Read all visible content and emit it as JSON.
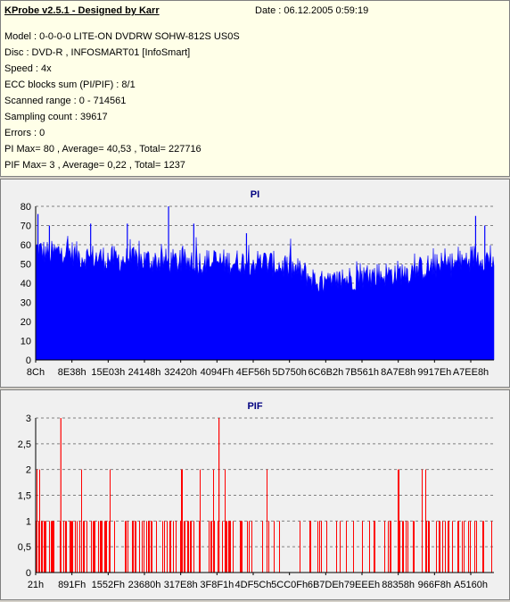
{
  "header": {
    "title": "KProbe v2.5.1 - Designed by Karr",
    "date": "Date : 06.12.2005 0:59:19",
    "lines": [
      "Model : 0-0-0-0 LITE-ON DVDRW SOHW-812S  US0S",
      "Disc : DVD-R , INFOSMART01 [InfoSmart]",
      "Speed : 4x",
      "ECC blocks sum (PI/PIF) : 8/1",
      "Scanned range : 0 - 714561",
      "Sampling count : 39617",
      "Errors : 0",
      "PI Max= 80 , Average= 40,53 , Total= 227716",
      "PIF Max= 3 , Average= 0,22 , Total= 1237"
    ]
  },
  "colors": {
    "pi": "#0000ff",
    "pif": "#ff0000",
    "plot_bg": "#f0f0f0",
    "grid": "#808080",
    "title": "#000080"
  },
  "chart_data": [
    {
      "type": "area",
      "title": "PI",
      "ylim": [
        0,
        80
      ],
      "yticks": [
        "0",
        "10",
        "20",
        "30",
        "40",
        "50",
        "60",
        "70",
        "80"
      ],
      "xticks": [
        "8Ch",
        "8E38h",
        "15E03h",
        "24148h",
        "32420h",
        "4094Fh",
        "4EF56h",
        "5D750h",
        "6C6B2h",
        "7B561h",
        "8A7E8h",
        "9917Eh",
        "A7EE8h"
      ],
      "profile": [
        [
          0,
          58
        ],
        [
          0.03,
          55
        ],
        [
          0.06,
          57
        ],
        [
          0.1,
          54
        ],
        [
          0.15,
          53
        ],
        [
          0.2,
          52
        ],
        [
          0.25,
          52
        ],
        [
          0.3,
          51
        ],
        [
          0.35,
          51
        ],
        [
          0.4,
          51
        ],
        [
          0.45,
          51
        ],
        [
          0.5,
          51
        ],
        [
          0.55,
          48
        ],
        [
          0.58,
          46
        ],
        [
          0.6,
          43
        ],
        [
          0.62,
          40
        ],
        [
          0.64,
          39
        ],
        [
          0.67,
          42
        ],
        [
          0.7,
          43
        ],
        [
          0.74,
          44
        ],
        [
          0.78,
          45
        ],
        [
          0.82,
          46
        ],
        [
          0.85,
          48
        ],
        [
          0.88,
          49
        ],
        [
          0.92,
          50
        ],
        [
          0.96,
          54
        ],
        [
          1.0,
          52
        ]
      ],
      "spikes": [
        [
          0.005,
          76
        ],
        [
          0.03,
          70
        ],
        [
          0.12,
          71
        ],
        [
          0.2,
          71
        ],
        [
          0.29,
          80
        ],
        [
          0.345,
          71
        ],
        [
          0.46,
          66
        ],
        [
          0.96,
          75
        ],
        [
          0.98,
          70
        ]
      ]
    },
    {
      "type": "bar",
      "title": "PIF",
      "ylim": [
        0,
        3
      ],
      "yticks": [
        "0",
        "0,5",
        "1",
        "1,5",
        "2",
        "2,5",
        "3"
      ],
      "xticks": [
        "21h",
        "891Fh",
        "1552Fh",
        "23680h",
        "317E8h",
        "3F8F1h",
        "4DF5Ch",
        "5CC0Fh",
        "6B7DEh",
        "79EEEh",
        "88358h",
        "966F8h",
        "A5160h"
      ],
      "max_points": [
        [
          0.055,
          3
        ],
        [
          0.4,
          3
        ]
      ]
    }
  ]
}
